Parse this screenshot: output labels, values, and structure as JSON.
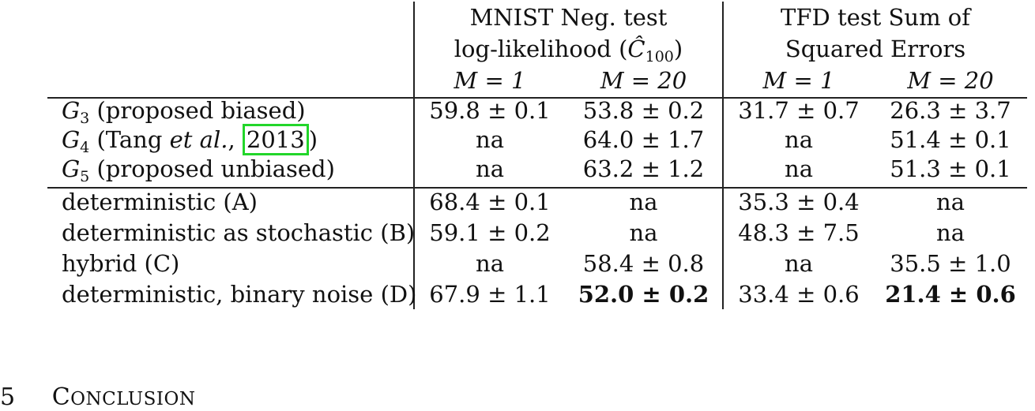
{
  "table": {
    "group_headers": [
      {
        "line1": "MNIST Neg. test",
        "line2_prefix": "log-likelihood (",
        "line2_symbol": "Ĉ",
        "line2_sub": "100",
        "line2_suffix": ")"
      },
      {
        "line1": "TFD test Sum of",
        "line2": "Squared Errors"
      }
    ],
    "subheaders": [
      "M = 1",
      "M = 20",
      "M = 1",
      "M = 20"
    ],
    "group_a": [
      {
        "sym": "G",
        "sub": "3",
        "label": " (proposed biased)",
        "vals": [
          "59.8 ± 0.1",
          "53.8 ± 0.2",
          "31.7 ± 0.7",
          "26.3 ± 3.7"
        ]
      },
      {
        "sym": "G",
        "sub": "4",
        "label_pre": " (Tang ",
        "label_it": "et al.",
        "label_mid": ", ",
        "cite": "2013",
        "label_post": ")",
        "vals": [
          "na",
          "64.0 ± 1.7",
          "na",
          "51.4 ± 0.1"
        ]
      },
      {
        "sym": "G",
        "sub": "5",
        "label": " (proposed unbiased)",
        "vals": [
          "na",
          "63.2 ± 1.2",
          "na",
          "51.3 ± 0.1"
        ]
      }
    ],
    "group_b": [
      {
        "label": "deterministic (A)",
        "vals": [
          "68.4 ± 0.1",
          "na",
          "35.3 ± 0.4",
          "na"
        ]
      },
      {
        "label": "deterministic as stochastic (B)",
        "vals": [
          "59.1 ± 0.2",
          "na",
          "48.3 ± 7.5",
          "na"
        ]
      },
      {
        "label": "hybrid (C)",
        "vals": [
          "na",
          "58.4 ± 0.8",
          "na",
          "35.5 ± 1.0"
        ]
      },
      {
        "label": "deterministic, binary noise (D)",
        "vals": [
          "67.9 ± 1.1",
          "52.0 ± 0.2",
          "33.4 ± 0.6",
          "21.4 ± 0.6"
        ],
        "bold": [
          false,
          true,
          false,
          true
        ]
      }
    ]
  },
  "section": {
    "number": "5",
    "title_first": "C",
    "title_rest": "ONCLUSION"
  }
}
